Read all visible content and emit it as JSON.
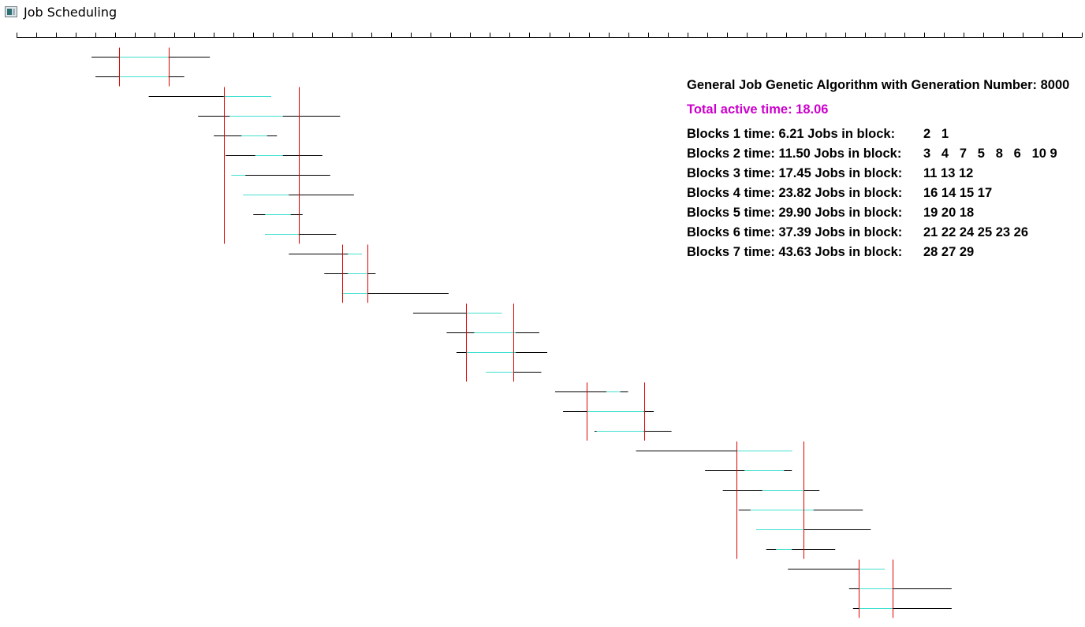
{
  "window": {
    "title": "Job Scheduling",
    "icon": "app-window-icon"
  },
  "info": {
    "ga_line": "General Job Genetic Algorithm with Generation Number: 8000",
    "total_line": "Total active time: 18.06",
    "blocks": [
      {
        "label": "Blocks 1 time: 6.21 Jobs in block:",
        "jobs": "2   1"
      },
      {
        "label": "Blocks 2 time: 11.50 Jobs in block:",
        "jobs": "3   4   7   5   8   6   10 9"
      },
      {
        "label": "Blocks 3 time: 17.45 Jobs in block:",
        "jobs": "11 13 12"
      },
      {
        "label": "Blocks 4 time: 23.82 Jobs in block:",
        "jobs": "16 14 15 17"
      },
      {
        "label": "Blocks 5 time: 29.90 Jobs in block:",
        "jobs": "19 20 18"
      },
      {
        "label": "Blocks 6 time: 37.39 Jobs in block:",
        "jobs": "21 22 24 25 23 26"
      },
      {
        "label": "Blocks 7 time: 43.63 Jobs in block:",
        "jobs": "28 27 29"
      }
    ]
  },
  "colors": {
    "job_line": "#000000",
    "active_segment": "#40e0d0",
    "block_marker": "#e00000",
    "total_text": "#cc00cc",
    "axis": "#000000"
  },
  "timeline": {
    "axis_min": 0,
    "axis_max": 54,
    "major_tick_every": 1,
    "jobs": [
      {
        "start": 3.8,
        "end": 9.8,
        "active_start": 5.2,
        "active_end": 7.7
      },
      {
        "start": 4.0,
        "end": 8.5,
        "active_start": 5.2,
        "active_end": 7.7
      },
      {
        "start": 6.7,
        "end": 12.9,
        "active_start": 10.5,
        "active_end": 12.9
      },
      {
        "start": 9.2,
        "end": 16.4,
        "active_start": 10.8,
        "active_end": 13.5
      },
      {
        "start": 10.0,
        "end": 13.2,
        "active_start": 11.4,
        "active_end": 12.7
      },
      {
        "start": 10.6,
        "end": 15.5,
        "active_start": 12.1,
        "active_end": 13.5
      },
      {
        "start": 10.9,
        "end": 15.9,
        "active_start": 10.9,
        "active_end": 11.6
      },
      {
        "start": 11.5,
        "end": 17.1,
        "active_start": 11.5,
        "active_end": 13.8
      },
      {
        "start": 12.0,
        "end": 14.5,
        "active_start": 12.6,
        "active_end": 13.9
      },
      {
        "start": 12.6,
        "end": 16.2,
        "active_start": 12.6,
        "active_end": 14.3
      },
      {
        "start": 13.8,
        "end": 17.5,
        "active_start": 16.8,
        "active_end": 17.5
      },
      {
        "start": 15.6,
        "end": 18.2,
        "active_start": 16.8,
        "active_end": 17.8
      },
      {
        "start": 16.5,
        "end": 21.9,
        "active_start": 16.5,
        "active_end": 17.8
      },
      {
        "start": 20.1,
        "end": 24.6,
        "active_start": 22.8,
        "active_end": 24.6
      },
      {
        "start": 21.8,
        "end": 26.5,
        "active_start": 23.2,
        "active_end": 25.3
      },
      {
        "start": 22.3,
        "end": 26.9,
        "active_start": 22.8,
        "active_end": 25.3
      },
      {
        "start": 23.8,
        "end": 26.6,
        "active_start": 23.8,
        "active_end": 25.2
      },
      {
        "start": 27.3,
        "end": 31.0,
        "active_start": 29.9,
        "active_end": 30.6
      },
      {
        "start": 27.7,
        "end": 32.3,
        "active_start": 28.9,
        "active_end": 31.8
      },
      {
        "start": 29.3,
        "end": 33.2,
        "active_start": 29.4,
        "active_end": 31.8
      },
      {
        "start": 31.4,
        "end": 39.3,
        "active_start": 36.5,
        "active_end": 39.3
      },
      {
        "start": 34.9,
        "end": 39.3,
        "active_start": 36.9,
        "active_end": 38.9
      },
      {
        "start": 35.8,
        "end": 40.7,
        "active_start": 37.8,
        "active_end": 39.9
      },
      {
        "start": 36.6,
        "end": 42.9,
        "active_start": 37.2,
        "active_end": 40.4
      },
      {
        "start": 37.5,
        "end": 43.3,
        "active_start": 37.5,
        "active_end": 39.9
      },
      {
        "start": 38.0,
        "end": 41.5,
        "active_start": 38.5,
        "active_end": 39.3
      },
      {
        "start": 39.1,
        "end": 44.0,
        "active_start": 42.7,
        "active_end": 44.0
      },
      {
        "start": 42.2,
        "end": 47.4,
        "active_start": 42.7,
        "active_end": 44.4
      },
      {
        "start": 42.4,
        "end": 47.4,
        "active_start": 42.7,
        "active_end": 44.4
      }
    ],
    "block_markers": [
      {
        "time": 5.2,
        "first_job": 0,
        "last_job": 1
      },
      {
        "time": 7.7,
        "first_job": 0,
        "last_job": 1
      },
      {
        "time": 10.5,
        "first_job": 2,
        "last_job": 9
      },
      {
        "time": 14.3,
        "first_job": 2,
        "last_job": 9
      },
      {
        "time": 16.5,
        "first_job": 10,
        "last_job": 12
      },
      {
        "time": 17.8,
        "first_job": 10,
        "last_job": 12
      },
      {
        "time": 22.8,
        "first_job": 13,
        "last_job": 16
      },
      {
        "time": 25.2,
        "first_job": 13,
        "last_job": 16
      },
      {
        "time": 28.9,
        "first_job": 17,
        "last_job": 19
      },
      {
        "time": 31.8,
        "first_job": 17,
        "last_job": 19
      },
      {
        "time": 36.5,
        "first_job": 20,
        "last_job": 25
      },
      {
        "time": 39.9,
        "first_job": 20,
        "last_job": 25
      },
      {
        "time": 42.7,
        "first_job": 26,
        "last_job": 28
      },
      {
        "time": 44.4,
        "first_job": 26,
        "last_job": 28
      }
    ]
  }
}
